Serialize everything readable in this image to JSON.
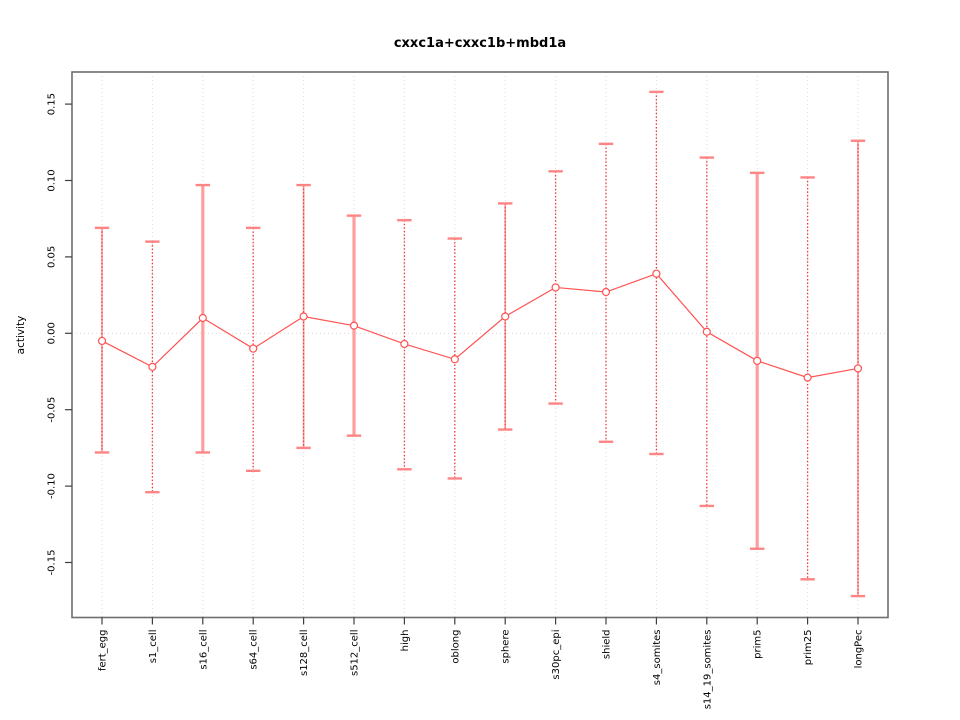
{
  "chart_data": {
    "type": "line",
    "title": "cxxc1a+cxxc1b+mbd1a",
    "xlabel": "",
    "ylabel": "activity",
    "legend_position": "none",
    "grid": "dotted vertical gridline per category and dotted horizontal line at 0",
    "categories": [
      "fert_egg",
      "s1_cell",
      "s16_cell",
      "s64_cell",
      "s128_cell",
      "s512_cell",
      "high",
      "oblong",
      "sphere",
      "s30pc_epi",
      "shield",
      "s4_somites",
      "s14_19_somites",
      "prim5",
      "prim25",
      "longPec"
    ],
    "values": [
      -0.005,
      -0.022,
      0.01,
      -0.01,
      0.011,
      0.005,
      -0.007,
      -0.017,
      0.011,
      0.03,
      0.027,
      0.039,
      0.001,
      -0.018,
      -0.029,
      -0.023
    ],
    "error_upper": [
      0.069,
      0.06,
      0.097,
      0.069,
      0.097,
      0.077,
      0.074,
      0.062,
      0.085,
      0.106,
      0.124,
      0.158,
      0.115,
      0.105,
      0.102,
      0.126
    ],
    "error_lower": [
      -0.078,
      -0.104,
      -0.078,
      -0.09,
      -0.075,
      -0.067,
      -0.089,
      -0.095,
      -0.063,
      -0.046,
      -0.071,
      -0.079,
      -0.113,
      -0.141,
      -0.161,
      -0.172
    ],
    "bar_styles": [
      "combo",
      "dotted",
      "solid",
      "dotted",
      "combo",
      "solid",
      "dotted",
      "dotted",
      "combo",
      "dotted",
      "dotted",
      "dotted",
      "dotted",
      "solid",
      "dotted",
      "combo"
    ],
    "yticks": [
      -0.15,
      -0.1,
      -0.05,
      0.0,
      0.05,
      0.1,
      0.15
    ],
    "ylim": [
      -0.186,
      0.171
    ],
    "colors": {
      "point": "#ff5252",
      "series_line": "#ff5252",
      "bar_solid": "#ff9e9e",
      "bar_dotted": "#ee3b3b",
      "bar_cap": "#ff8585",
      "grid": "#d8d8d8",
      "frame": "#6e6e6e",
      "tick": "#3f3f3f",
      "text": "#000000"
    }
  }
}
